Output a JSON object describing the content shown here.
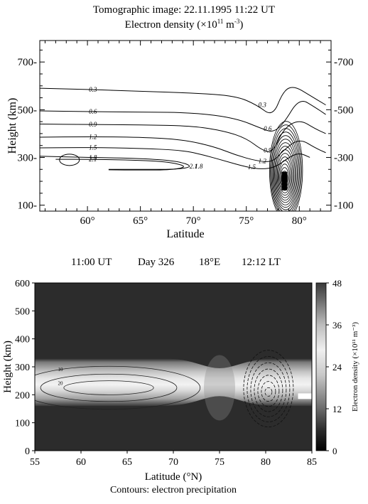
{
  "top_panel": {
    "title_line1": "Tomographic image: 22.11.1995    11:22 UT",
    "title_line2_prefix": "Electron density (×10",
    "title_line2_exp": "11",
    "title_line2_unit": " m",
    "title_line2_unit_exp": "-3",
    "title_line2_suffix": ")"
  },
  "bottom_panel": {
    "header_items": [
      "11:00 UT",
      "Day 326",
      "18°E",
      "12:12 LT"
    ],
    "caption": "Contours: electron precipitation",
    "colorbar_label": "Electron density (×10¹¹ m⁻³)"
  },
  "chart_data": [
    {
      "type": "heatmap",
      "title": "Tomographic image: 22.11.1995    11:22 UT",
      "subtitle": "Electron density (×10^11 m^-3)",
      "xlabel": "Latitude",
      "ylabel": "Height (km)",
      "xlim": [
        55.5,
        83
      ],
      "ylim": [
        75,
        790
      ],
      "x_ticks": [
        60,
        65,
        70,
        75,
        80
      ],
      "x_tick_labels": [
        "60°",
        "65°",
        "70°",
        "75°",
        "80°"
      ],
      "y_ticks": [
        100,
        300,
        500,
        700
      ],
      "y_tick_labels": [
        "100",
        "300",
        "500",
        "700"
      ],
      "contour_levels": [
        0.3,
        0.6,
        0.9,
        1.2,
        1.5,
        1.8,
        2.1
      ],
      "contours": [
        {
          "level": 0.3,
          "label": "0.3",
          "points": [
            [
              55.5,
              590
            ],
            [
              60,
              585
            ],
            [
              65,
              577
            ],
            [
              70,
              570
            ],
            [
              74,
              558
            ],
            [
              76,
              520
            ],
            [
              77.5,
              470
            ],
            [
              78.5,
              580
            ],
            [
              79.5,
              600
            ],
            [
              81,
              560
            ],
            [
              82.5,
              520
            ]
          ]
        },
        {
          "level": 0.6,
          "label": "0.6",
          "points": [
            [
              55.5,
              495
            ],
            [
              60,
              492
            ],
            [
              65,
              490
            ],
            [
              70,
              488
            ],
            [
              74,
              465
            ],
            [
              76.5,
              420
            ],
            [
              77.5,
              405
            ],
            [
              78.5,
              440
            ],
            [
              80,
              550
            ],
            [
              81.5,
              510
            ],
            [
              82.5,
              480
            ]
          ]
        },
        {
          "level": 0.9,
          "label": "0.9",
          "points": [
            [
              55.5,
              440
            ],
            [
              60,
              438
            ],
            [
              65,
              437
            ],
            [
              70,
              432
            ],
            [
              73,
              410
            ],
            [
              75,
              380
            ],
            [
              76.5,
              330
            ],
            [
              77.5,
              320
            ],
            [
              78.5,
              420
            ],
            [
              80,
              460
            ],
            [
              81.5,
              420
            ],
            [
              82.5,
              400
            ]
          ]
        },
        {
          "level": 1.2,
          "label": "1.2",
          "points": [
            [
              55.5,
              385
            ],
            [
              60,
              387
            ],
            [
              65,
              385
            ],
            [
              69,
              375
            ],
            [
              72,
              345
            ],
            [
              74,
              310
            ],
            [
              76,
              285
            ],
            [
              77.5,
              280
            ],
            [
              78.5,
              330
            ],
            [
              80,
              380
            ],
            [
              81.5,
              340
            ],
            [
              82.5,
              320
            ]
          ]
        },
        {
          "level": 1.5,
          "label": "1.5",
          "points": [
            [
              55.5,
              340
            ],
            [
              60,
              342
            ],
            [
              65,
              338
            ],
            [
              69,
              330
            ],
            [
              71,
              310
            ],
            [
              73,
              285
            ],
            [
              75,
              260
            ],
            [
              76.5,
              250
            ],
            [
              77.8,
              260
            ],
            [
              79,
              300
            ],
            [
              80,
              320
            ],
            [
              81,
              300
            ]
          ]
        },
        {
          "level": 1.8,
          "label": "1.8",
          "points": [
            [
              55.5,
              305
            ],
            [
              60,
              300
            ],
            [
              65,
              296
            ],
            [
              68.5,
              285
            ],
            [
              70,
              262
            ],
            [
              68.5,
              250
            ],
            [
              65,
              250
            ],
            [
              62,
              250
            ]
          ]
        },
        {
          "level": 2.1,
          "label": "2.1",
          "points": [
            [
              57,
              292
            ],
            [
              60,
              292
            ],
            [
              63.5,
              290
            ],
            [
              67.5,
              283
            ],
            [
              69.5,
              262
            ],
            [
              68,
              248
            ],
            [
              65,
              247
            ],
            [
              62,
              248
            ]
          ]
        }
      ]
    },
    {
      "type": "heatmap",
      "title": "",
      "subtitle": "11:00 UT    Day 326    18°E    12:12 LT",
      "xlabel": "Latitude (°N)",
      "ylabel": "Height (km)",
      "xlim": [
        55,
        85
      ],
      "ylim": [
        0,
        600
      ],
      "x_ticks": [
        55,
        60,
        65,
        70,
        75,
        80,
        85
      ],
      "y_ticks": [
        0,
        100,
        200,
        300,
        400,
        500,
        600
      ],
      "colorbar": {
        "label": "Electron density (×10¹¹ m⁻³)",
        "range": [
          0,
          48
        ],
        "ticks": [
          0,
          12,
          24,
          36,
          48
        ]
      },
      "density_band": {
        "peak_height_km": 225,
        "band_bottom_km": 160,
        "band_top_km": 330,
        "thinning_latitude": 75,
        "max_value": 48
      },
      "contour_labels": [
        "10",
        "20"
      ],
      "caption": "Contours: electron precipitation"
    }
  ]
}
